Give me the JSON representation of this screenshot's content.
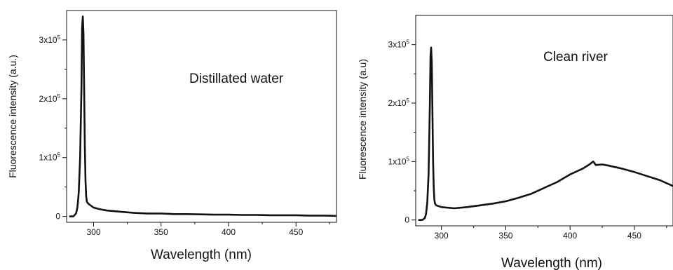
{
  "chart_data": [
    {
      "type": "line",
      "annotation": "Distillated water",
      "xlabel": "Wavelength (nm)",
      "ylabel": "Fluorescence intensity (a.u.)",
      "xlim": [
        280,
        480
      ],
      "ylim": [
        -10000,
        350000
      ],
      "x_ticks": [
        300,
        350,
        400,
        450
      ],
      "x_tick_labels": [
        "300",
        "350",
        "400",
        "450"
      ],
      "y_ticks": [
        0,
        100000,
        200000,
        300000
      ],
      "y_tick_labels": [
        {
          "base": "0",
          "exp": ""
        },
        {
          "base": "1x10",
          "exp": "5"
        },
        {
          "base": "2x10",
          "exp": "5"
        },
        {
          "base": "3x10",
          "exp": "5"
        }
      ],
      "series": [
        {
          "x": [
            282,
            285,
            287,
            288,
            289,
            290,
            291,
            291.5,
            292,
            292.5,
            293,
            293.5,
            294,
            294.5,
            295,
            296,
            297,
            300,
            305,
            310,
            320,
            330,
            340,
            350,
            360,
            370,
            380,
            390,
            400,
            410,
            420,
            430,
            440,
            450,
            460,
            470,
            480
          ],
          "y": [
            0,
            0,
            5000,
            15000,
            40000,
            100000,
            220000,
            320000,
            340000,
            310000,
            220000,
            120000,
            60000,
            35000,
            25000,
            22000,
            20000,
            15000,
            12000,
            10000,
            8000,
            6000,
            5000,
            5000,
            4000,
            4000,
            3500,
            3000,
            3000,
            2500,
            2500,
            2000,
            2000,
            2000,
            1500,
            1500,
            1000
          ]
        }
      ]
    },
    {
      "type": "line",
      "annotation": "Clean river",
      "xlabel": "Wavelength (nm)",
      "ylabel": "Fluorescence intensity (a.u)",
      "xlim": [
        280,
        480
      ],
      "ylim": [
        -10000,
        350000
      ],
      "x_ticks": [
        300,
        350,
        400,
        450
      ],
      "x_tick_labels": [
        "300",
        "350",
        "400",
        "450"
      ],
      "y_ticks": [
        0,
        100000,
        200000,
        300000
      ],
      "y_tick_labels": [
        {
          "base": "0",
          "exp": ""
        },
        {
          "base": "1x10",
          "exp": "5"
        },
        {
          "base": "2x10",
          "exp": "5"
        },
        {
          "base": "3x10",
          "exp": "5"
        }
      ],
      "series": [
        {
          "x": [
            282,
            285,
            287,
            288,
            289,
            290,
            291,
            291.5,
            292,
            292.5,
            293,
            293.5,
            294,
            294.5,
            295,
            296,
            300,
            310,
            320,
            330,
            340,
            350,
            360,
            370,
            380,
            390,
            400,
            410,
            415,
            418,
            420,
            425,
            430,
            440,
            450,
            460,
            470,
            480
          ],
          "y": [
            0,
            0,
            3000,
            10000,
            30000,
            80000,
            200000,
            280000,
            295000,
            270000,
            180000,
            100000,
            55000,
            35000,
            28000,
            25000,
            22000,
            20000,
            22000,
            25000,
            28000,
            32000,
            38000,
            45000,
            55000,
            65000,
            78000,
            88000,
            95000,
            100000,
            94000,
            95000,
            93000,
            88000,
            82000,
            75000,
            68000,
            58000
          ]
        }
      ]
    }
  ]
}
